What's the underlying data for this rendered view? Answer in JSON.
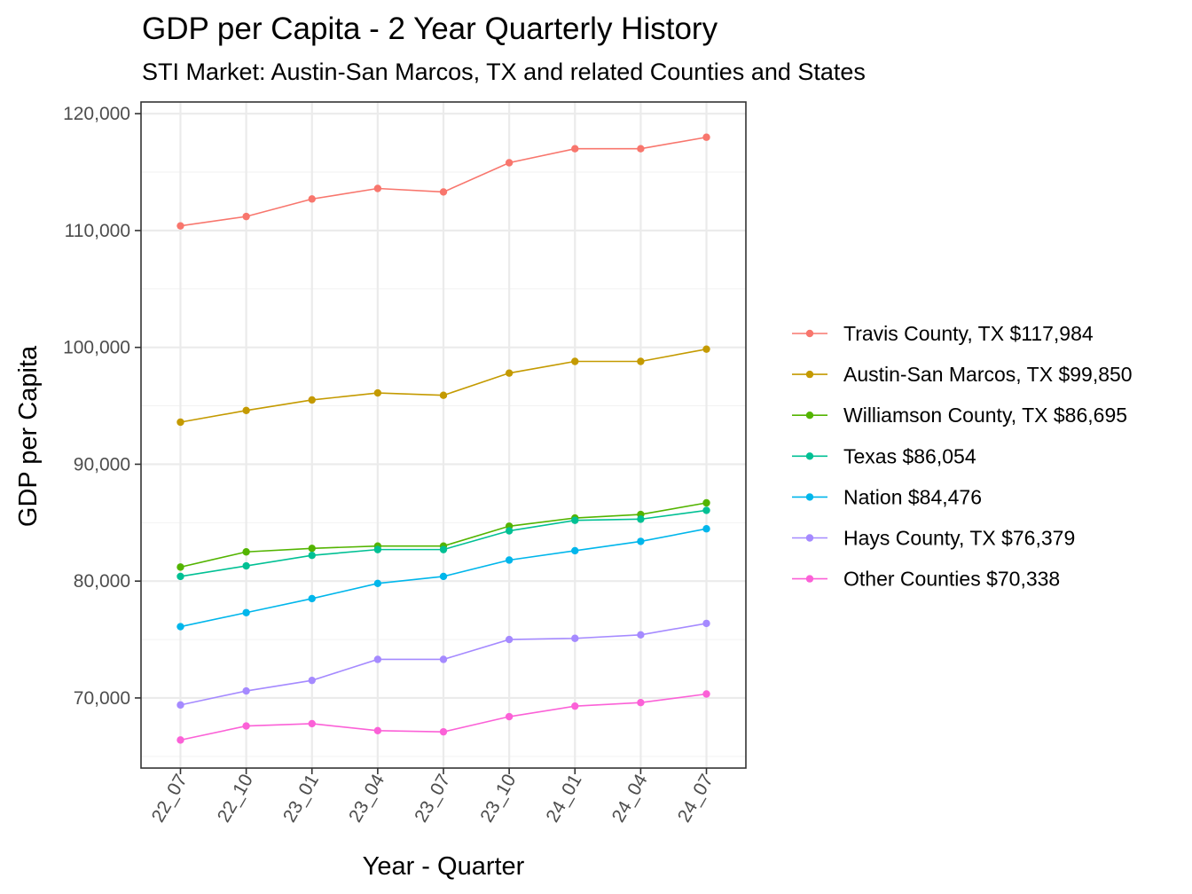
{
  "chart_data": {
    "type": "line",
    "title": "GDP per Capita - 2 Year Quarterly History",
    "subtitle": "STI Market: Austin-San Marcos, TX and related Counties and States",
    "xlabel": "Year - Quarter",
    "ylabel": "GDP per Capita",
    "x": [
      "22_07",
      "22_10",
      "23_01",
      "23_04",
      "23_07",
      "23_10",
      "24_01",
      "24_04",
      "24_07"
    ],
    "ylim": [
      64000,
      121000
    ],
    "yticks": [
      70000,
      80000,
      90000,
      100000,
      110000,
      120000
    ],
    "ytick_labels": [
      "70,000",
      "80,000",
      "90,000",
      "100,000",
      "110,000",
      "120,000"
    ],
    "grid": true,
    "legend_position": "right",
    "series": [
      {
        "name": "Travis County, TX $117,984",
        "color": "#F8766D",
        "values": [
          110400,
          111200,
          112700,
          113600,
          113300,
          115800,
          117000,
          117000,
          117984
        ]
      },
      {
        "name": "Austin-San Marcos, TX $99,850",
        "color": "#C49A00",
        "values": [
          93600,
          94600,
          95500,
          96100,
          95900,
          97800,
          98800,
          98800,
          99850
        ]
      },
      {
        "name": "Williamson County, TX $86,695",
        "color": "#53B400",
        "values": [
          81200,
          82500,
          82800,
          83000,
          83000,
          84700,
          85400,
          85700,
          86695
        ]
      },
      {
        "name": "Texas $86,054",
        "color": "#00C094",
        "values": [
          80400,
          81300,
          82200,
          82700,
          82700,
          84300,
          85200,
          85300,
          86054
        ]
      },
      {
        "name": "Nation $84,476",
        "color": "#00B6EB",
        "values": [
          76100,
          77300,
          78500,
          79800,
          80400,
          81800,
          82600,
          83400,
          84476
        ]
      },
      {
        "name": "Hays County, TX $76,379",
        "color": "#A58AFF",
        "values": [
          69400,
          70600,
          71500,
          73300,
          73300,
          75000,
          75100,
          75400,
          76379
        ]
      },
      {
        "name": "Other Counties $70,338",
        "color": "#FB61D7",
        "values": [
          66400,
          67600,
          67800,
          67200,
          67100,
          68400,
          69300,
          69600,
          70338
        ]
      }
    ]
  }
}
